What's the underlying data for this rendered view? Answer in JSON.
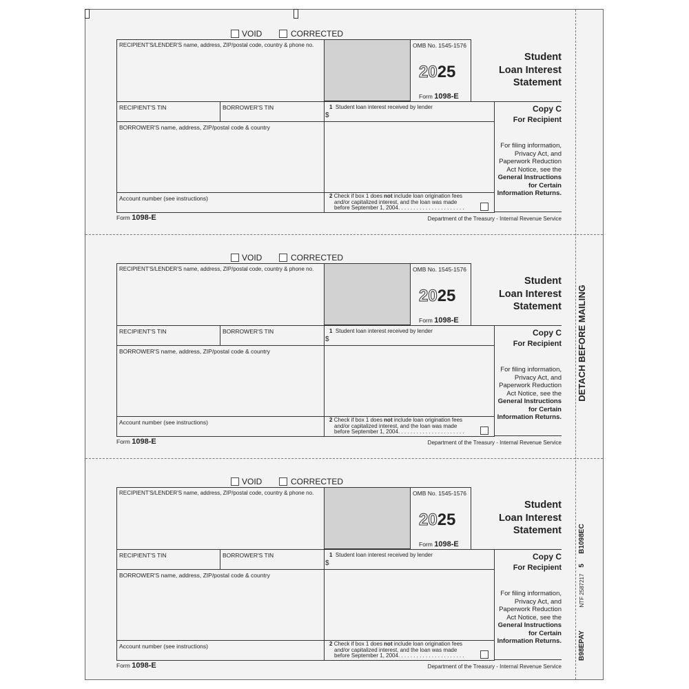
{
  "form": {
    "void_label": "VOID",
    "corrected_label": "CORRECTED",
    "recipient_lender": "RECIPIENT'S/LENDER'S name, address, ZIP/postal code, country & phone no.",
    "omb": "OMB No. 1545-1576",
    "year_prefix": "20",
    "year_suffix": "25",
    "form_word": "Form",
    "form_number": "1098-E",
    "title_lines": [
      "Student",
      "Loan Interest",
      "Statement"
    ],
    "recipient_tin": "RECIPIENT'S TIN",
    "borrower_tin": "BORROWER'S TIN",
    "box1_num": "1",
    "box1_label": "Student loan interest received by lender",
    "dollar": "$",
    "copy": "Copy C",
    "for_recipient": "For Recipient",
    "borrower_name": "BORROWER'S name, address, ZIP/postal code & country",
    "info_lines": [
      "For filing information,",
      "Privacy Act, and",
      "Paperwork Reduction",
      "Act Notice, see the"
    ],
    "info_bold_lines": [
      "General Instructions",
      "for Certain",
      "Information Returns."
    ],
    "account": "Account number (see instructions)",
    "box2_num": "2",
    "box2_line1a": "Check if box 1 does ",
    "box2_line1b": "not",
    "box2_line1c": " include loan origination fees",
    "box2_line2": "and/or capitalized interest, and the loan was made",
    "box2_line3": "before September 1, 2004. . . . . . . . . . . . . . . . . . . . . .",
    "department": "Department of the Treasury - Internal Revenue Service"
  },
  "strip": {
    "detach": "DETACH BEFORE MAILING",
    "code1": "B1098EC",
    "code2": "5",
    "code3": "NTF 2587217",
    "code4": "B98EPAY"
  }
}
